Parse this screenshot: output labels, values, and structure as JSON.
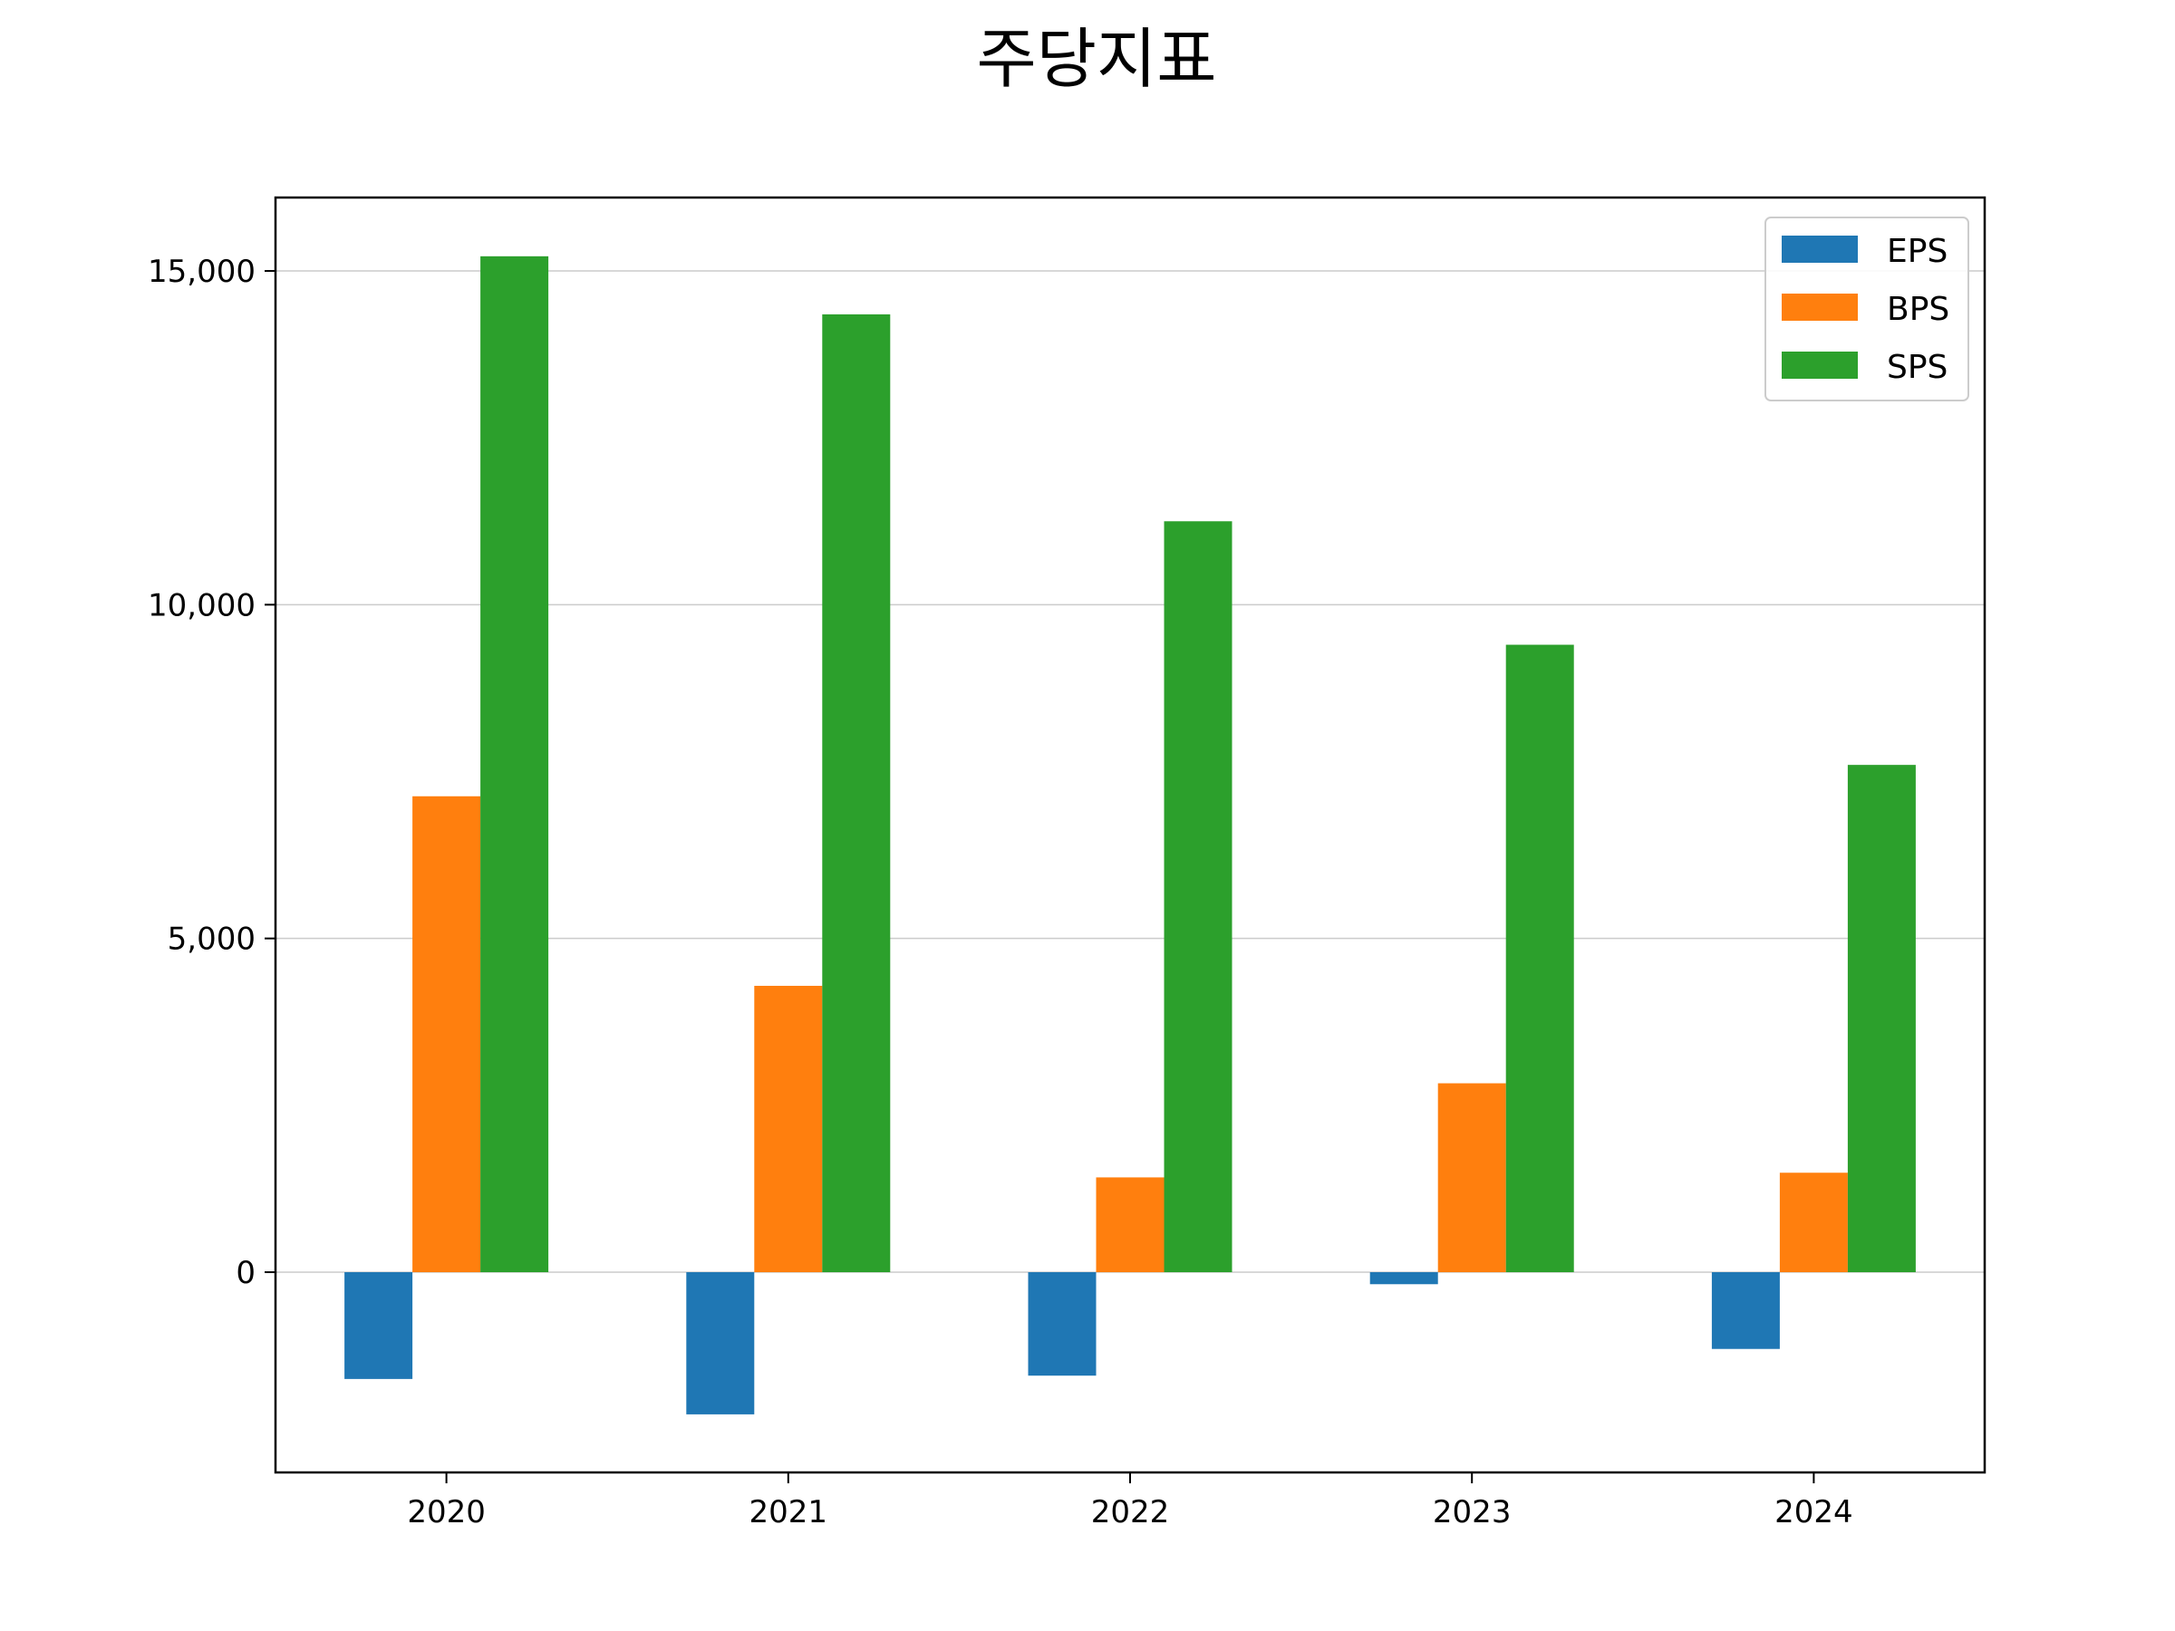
{
  "chart_data": {
    "type": "bar",
    "title": "주당지표",
    "xlabel": "",
    "ylabel": "",
    "categories": [
      "2020",
      "2021",
      "2022",
      "2023",
      "2024"
    ],
    "series": [
      {
        "name": "EPS",
        "color": "#1f77b4",
        "values": [
          -1600,
          -2130,
          -1550,
          -180,
          -1150
        ]
      },
      {
        "name": "BPS",
        "color": "#ff7f0e",
        "values": [
          7130,
          4290,
          1420,
          2830,
          1490
        ]
      },
      {
        "name": "SPS",
        "color": "#2ca02c",
        "values": [
          15220,
          14350,
          11250,
          9400,
          7600
        ]
      }
    ],
    "ylim": [
      -3000,
      16100
    ],
    "yticks": [
      0,
      5000,
      10000,
      15000
    ],
    "ytick_labels": [
      "0",
      "5,000",
      "10,000",
      "15,000"
    ],
    "grid": "y",
    "legend": "top-right"
  }
}
